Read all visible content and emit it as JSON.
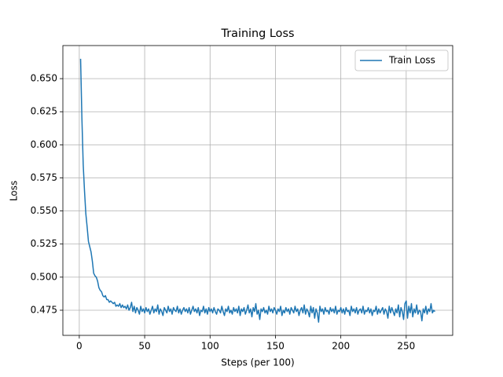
{
  "chart_data": {
    "type": "line",
    "title": "Training Loss",
    "x_label": "Steps (per 100)",
    "y_label": "Loss",
    "x": [
      1,
      2,
      3,
      4,
      5,
      6,
      7,
      8,
      9,
      10,
      11,
      12,
      13,
      14,
      15,
      16,
      17,
      18,
      19,
      20,
      21,
      22,
      23,
      24,
      25,
      26,
      27,
      28,
      29,
      30,
      31,
      32,
      33,
      34,
      35,
      36,
      37,
      38,
      39,
      40,
      41,
      42,
      43,
      44,
      45,
      46,
      47,
      48,
      49,
      50,
      51,
      52,
      53,
      54,
      55,
      56,
      57,
      58,
      59,
      60,
      61,
      62,
      63,
      64,
      65,
      66,
      67,
      68,
      69,
      70,
      71,
      72,
      73,
      74,
      75,
      76,
      77,
      78,
      79,
      80,
      81,
      82,
      83,
      84,
      85,
      86,
      87,
      88,
      89,
      90,
      91,
      92,
      93,
      94,
      95,
      96,
      97,
      98,
      99,
      100,
      101,
      102,
      103,
      104,
      105,
      106,
      107,
      108,
      109,
      110,
      111,
      112,
      113,
      114,
      115,
      116,
      117,
      118,
      119,
      120,
      121,
      122,
      123,
      124,
      125,
      126,
      127,
      128,
      129,
      130,
      131,
      132,
      133,
      134,
      135,
      136,
      137,
      138,
      139,
      140,
      141,
      142,
      143,
      144,
      145,
      146,
      147,
      148,
      149,
      150,
      151,
      152,
      153,
      154,
      155,
      156,
      157,
      158,
      159,
      160,
      161,
      162,
      163,
      164,
      165,
      166,
      167,
      168,
      169,
      170,
      171,
      172,
      173,
      174,
      175,
      176,
      177,
      178,
      179,
      180,
      181,
      182,
      183,
      184,
      185,
      186,
      187,
      188,
      189,
      190,
      191,
      192,
      193,
      194,
      195,
      196,
      197,
      198,
      199,
      200,
      201,
      202,
      203,
      204,
      205,
      206,
      207,
      208,
      209,
      210,
      211,
      212,
      213,
      214,
      215,
      216,
      217,
      218,
      219,
      220,
      221,
      222,
      223,
      224,
      225,
      226,
      227,
      228,
      229,
      230,
      231,
      232,
      233,
      234,
      235,
      236,
      237,
      238,
      239,
      240,
      241,
      242,
      243,
      244,
      245,
      246,
      247,
      248,
      249,
      250,
      251,
      252,
      253,
      254,
      255,
      256,
      257,
      258,
      259,
      260,
      261,
      262,
      263,
      264,
      265,
      266,
      267,
      268,
      269,
      270,
      271,
      272
    ],
    "series": [
      {
        "name": "Train Loss",
        "color": "#1f77b4",
        "values": [
          0.665,
          0.62,
          0.585,
          0.565,
          0.548,
          0.538,
          0.527,
          0.523,
          0.519,
          0.512,
          0.503,
          0.501,
          0.5,
          0.497,
          0.492,
          0.49,
          0.489,
          0.486,
          0.485,
          0.486,
          0.483,
          0.483,
          0.481,
          0.482,
          0.481,
          0.48,
          0.481,
          0.478,
          0.479,
          0.478,
          0.48,
          0.477,
          0.479,
          0.477,
          0.478,
          0.476,
          0.479,
          0.475,
          0.477,
          0.481,
          0.474,
          0.478,
          0.473,
          0.477,
          0.475,
          0.472,
          0.478,
          0.474,
          0.476,
          0.473,
          0.477,
          0.474,
          0.476,
          0.472,
          0.475,
          0.478,
          0.473,
          0.476,
          0.474,
          0.479,
          0.472,
          0.476,
          0.474,
          0.471,
          0.477,
          0.475,
          0.473,
          0.478,
          0.474,
          0.476,
          0.472,
          0.477,
          0.475,
          0.474,
          0.478,
          0.473,
          0.476,
          0.472,
          0.475,
          0.477,
          0.474,
          0.476,
          0.473,
          0.477,
          0.472,
          0.475,
          0.478,
          0.474,
          0.476,
          0.473,
          0.477,
          0.471,
          0.475,
          0.474,
          0.478,
          0.473,
          0.476,
          0.472,
          0.477,
          0.474,
          0.476,
          0.473,
          0.477,
          0.474,
          0.472,
          0.476,
          0.475,
          0.473,
          0.478,
          0.474,
          0.471,
          0.476,
          0.474,
          0.478,
          0.473,
          0.475,
          0.472,
          0.477,
          0.474,
          0.476,
          0.473,
          0.478,
          0.471,
          0.476,
          0.474,
          0.477,
          0.472,
          0.475,
          0.479,
          0.473,
          0.476,
          0.47,
          0.477,
          0.474,
          0.48,
          0.472,
          0.475,
          0.468,
          0.476,
          0.474,
          0.477,
          0.473,
          0.475,
          0.472,
          0.478,
          0.474,
          0.476,
          0.473,
          0.477,
          0.475,
          0.472,
          0.476,
          0.474,
          0.478,
          0.471,
          0.475,
          0.473,
          0.477,
          0.474,
          0.476,
          0.472,
          0.477,
          0.475,
          0.473,
          0.478,
          0.474,
          0.476,
          0.471,
          0.475,
          0.477,
          0.473,
          0.479,
          0.472,
          0.476,
          0.474,
          0.47,
          0.478,
          0.473,
          0.477,
          0.469,
          0.476,
          0.473,
          0.466,
          0.478,
          0.474,
          0.476,
          0.472,
          0.477,
          0.474,
          0.475,
          0.472,
          0.477,
          0.474,
          0.476,
          0.473,
          0.478,
          0.472,
          0.475,
          0.474,
          0.477,
          0.473,
          0.476,
          0.472,
          0.477,
          0.474,
          0.475,
          0.471,
          0.478,
          0.474,
          0.476,
          0.473,
          0.477,
          0.472,
          0.475,
          0.476,
          0.473,
          0.478,
          0.472,
          0.475,
          0.474,
          0.477,
          0.473,
          0.476,
          0.471,
          0.475,
          0.474,
          0.478,
          0.472,
          0.476,
          0.473,
          0.475,
          0.477,
          0.472,
          0.476,
          0.474,
          0.469,
          0.478,
          0.473,
          0.477,
          0.474,
          0.471,
          0.476,
          0.473,
          0.479,
          0.47,
          0.477,
          0.474,
          0.468,
          0.48,
          0.482,
          0.469,
          0.478,
          0.473,
          0.48,
          0.47,
          0.476,
          0.473,
          0.479,
          0.472,
          0.475,
          0.474,
          0.467,
          0.476,
          0.473,
          0.478,
          0.472,
          0.476,
          0.474,
          0.48,
          0.473,
          0.475,
          0.474
        ]
      }
    ],
    "xlim": [
      -12.55,
      285.55
    ],
    "xticks": [
      0,
      50,
      100,
      150,
      200,
      250
    ],
    "ylim": [
      0.456,
      0.675
    ],
    "yticks": [
      0.475,
      {
        "value": 0.5,
        "label": "0.500"
      },
      0.525,
      {
        "value": 0.55,
        "label": "0.550"
      },
      0.575,
      {
        "value": 0.6,
        "label": "0.600"
      },
      0.625,
      {
        "value": 0.65,
        "label": "0.650"
      }
    ],
    "grid": true,
    "legend": "upper right"
  }
}
